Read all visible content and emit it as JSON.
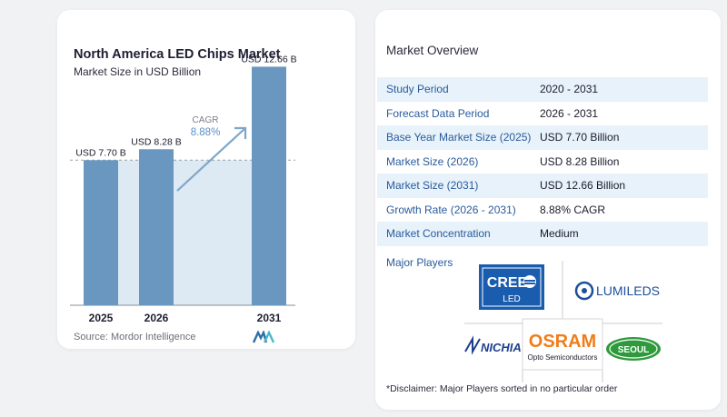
{
  "chart_data": {
    "type": "bar",
    "title": "North America LED Chips Market",
    "subtitle": "Market Size in USD Billion",
    "categories": [
      "2025",
      "2026",
      "2031"
    ],
    "values": [
      7.7,
      8.28,
      12.66
    ],
    "value_labels": [
      "USD 7.70 B",
      "USD 8.28 B",
      "USD 12.66 B"
    ],
    "ylim": [
      0,
      13.5
    ],
    "cagr_label": "CAGR",
    "cagr_value": "8.88%",
    "grid": false,
    "colors": {
      "bar": "#6a97bf",
      "shade": "#dde9f3",
      "arrow": "#7fa6c8",
      "cagr": "#5a8fc4"
    }
  },
  "source": "Source: Mordor Intelligence",
  "overview": {
    "title": "Market Overview",
    "rows": [
      {
        "label": "Study Period",
        "value": "2020 - 2031"
      },
      {
        "label": "Forecast Data Period",
        "value": "2026 - 2031"
      },
      {
        "label": "Base Year Market Size (2025)",
        "value": "USD 7.70 Billion"
      },
      {
        "label": "Market Size (2026)",
        "value": "USD 8.28 Billion"
      },
      {
        "label": "Market Size (2031)",
        "value": "USD 12.66 Billion"
      },
      {
        "label": "Growth Rate (2026 - 2031)",
        "value": "8.88% CAGR"
      },
      {
        "label": "Market Concentration",
        "value": "Medium"
      }
    ],
    "major_players_label": "Major Players",
    "players": {
      "cree": {
        "name": "CREE",
        "sub": "LED"
      },
      "lumileds": {
        "name": "LUMILEDS"
      },
      "nichia": {
        "name": "NICHIA"
      },
      "osram": {
        "name": "OSRAM",
        "sub": "Opto Semiconductors"
      },
      "seoul": {
        "name": "SEOUL"
      }
    },
    "disclaimer": "*Disclaimer: Major Players sorted in no particular order"
  }
}
